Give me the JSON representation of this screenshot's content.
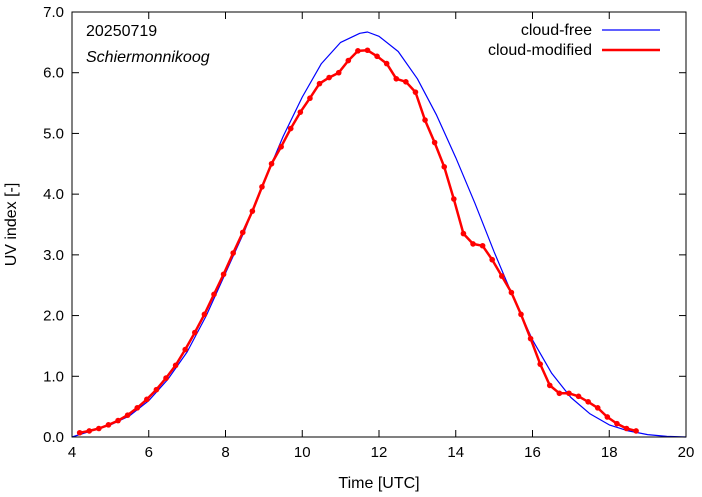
{
  "chart_data": {
    "type": "line",
    "xlabel": "Time  [UTC]",
    "ylabel": "UV index  [-]",
    "xlim": [
      4,
      20
    ],
    "ylim": [
      0,
      7
    ],
    "x_ticks": [
      4,
      6,
      8,
      10,
      12,
      14,
      16,
      18,
      20
    ],
    "x_tick_labels": [
      "4",
      "6",
      "8",
      "10",
      "12",
      "14",
      "16",
      "18",
      "20"
    ],
    "y_ticks": [
      0,
      1,
      2,
      3,
      4,
      5,
      6,
      7
    ],
    "y_tick_labels": [
      "0.0",
      "1.0",
      "2.0",
      "3.0",
      "4.0",
      "5.0",
      "6.0",
      "7.0"
    ],
    "annotations": [
      "20250719",
      "Schiermonnikoog"
    ],
    "legend_position": "top-right",
    "grid": false,
    "series": [
      {
        "name": "cloud-free",
        "color": "#0000ff",
        "markers": false,
        "x": [
          4.0,
          4.5,
          5.0,
          5.5,
          6.0,
          6.5,
          7.0,
          7.5,
          8.0,
          8.5,
          9.0,
          9.5,
          10.0,
          10.5,
          11.0,
          11.5,
          11.7,
          12.0,
          12.5,
          13.0,
          13.5,
          14.0,
          14.5,
          15.0,
          15.5,
          16.0,
          16.5,
          17.0,
          17.5,
          18.0,
          18.5,
          19.0,
          19.5,
          20.0
        ],
        "y": [
          0.0,
          0.1,
          0.2,
          0.35,
          0.6,
          0.95,
          1.4,
          2.0,
          2.7,
          3.4,
          4.2,
          4.95,
          5.6,
          6.15,
          6.5,
          6.65,
          6.67,
          6.6,
          6.35,
          5.9,
          5.3,
          4.6,
          3.85,
          3.05,
          2.3,
          1.6,
          1.05,
          0.65,
          0.38,
          0.2,
          0.1,
          0.04,
          0.01,
          0.0
        ]
      },
      {
        "name": "cloud-modified",
        "color": "#ff0000",
        "markers": true,
        "x": [
          4.2,
          4.45,
          4.7,
          4.95,
          5.2,
          5.45,
          5.7,
          5.95,
          6.2,
          6.45,
          6.7,
          6.95,
          7.2,
          7.45,
          7.7,
          7.95,
          8.2,
          8.45,
          8.7,
          8.95,
          9.2,
          9.45,
          9.7,
          9.95,
          10.2,
          10.45,
          10.7,
          10.95,
          11.2,
          11.45,
          11.7,
          11.95,
          12.2,
          12.45,
          12.7,
          12.95,
          13.2,
          13.45,
          13.7,
          13.95,
          14.2,
          14.45,
          14.7,
          14.95,
          15.2,
          15.45,
          15.7,
          15.95,
          16.2,
          16.45,
          16.7,
          16.95,
          17.2,
          17.45,
          17.7,
          17.95,
          18.2,
          18.45,
          18.7
        ],
        "y": [
          0.07,
          0.1,
          0.14,
          0.2,
          0.27,
          0.36,
          0.48,
          0.62,
          0.78,
          0.97,
          1.18,
          1.44,
          1.72,
          2.02,
          2.35,
          2.68,
          3.03,
          3.37,
          3.72,
          4.12,
          4.5,
          4.78,
          5.08,
          5.35,
          5.58,
          5.82,
          5.92,
          6.0,
          6.2,
          6.36,
          6.37,
          6.27,
          6.15,
          5.9,
          5.85,
          5.68,
          5.22,
          4.85,
          4.45,
          3.92,
          3.35,
          3.18,
          3.15,
          2.92,
          2.65,
          2.38,
          2.02,
          1.62,
          1.2,
          0.85,
          0.72,
          0.72,
          0.67,
          0.58,
          0.48,
          0.33,
          0.22,
          0.14,
          0.1
        ]
      }
    ]
  }
}
